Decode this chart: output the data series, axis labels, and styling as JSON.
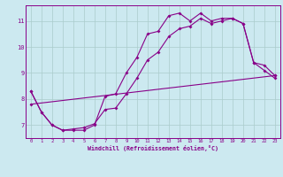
{
  "xlabel": "Windchill (Refroidissement éolien,°C)",
  "bg_color": "#cce9f0",
  "line_color": "#880088",
  "grid_color": "#aacccc",
  "xlim": [
    -0.5,
    23.5
  ],
  "ylim": [
    6.5,
    11.6
  ],
  "xticks": [
    0,
    1,
    2,
    3,
    4,
    5,
    6,
    7,
    8,
    9,
    10,
    11,
    12,
    13,
    14,
    15,
    16,
    17,
    18,
    19,
    20,
    21,
    22,
    23
  ],
  "yticks": [
    7,
    8,
    9,
    10,
    11
  ],
  "line1_x": [
    0,
    1,
    2,
    3,
    4,
    5,
    6,
    7,
    8,
    9,
    10,
    11,
    12,
    13,
    14,
    15,
    16,
    17,
    18,
    19,
    20,
    21,
    22,
    23
  ],
  "line1_y": [
    8.3,
    7.5,
    7.0,
    6.8,
    6.8,
    6.8,
    7.0,
    8.1,
    8.2,
    9.0,
    9.6,
    10.5,
    10.6,
    11.2,
    11.3,
    11.0,
    11.3,
    11.0,
    11.1,
    11.1,
    10.9,
    9.4,
    9.3,
    8.9
  ],
  "line2_x": [
    0,
    1,
    2,
    3,
    4,
    5,
    6,
    7,
    8,
    9,
    10,
    11,
    12,
    13,
    14,
    15,
    16,
    17,
    18,
    19,
    20,
    21,
    22,
    23
  ],
  "line2_y": [
    8.3,
    7.5,
    7.0,
    6.8,
    6.85,
    6.9,
    7.05,
    7.6,
    7.65,
    8.2,
    8.8,
    9.5,
    9.8,
    10.4,
    10.7,
    10.8,
    11.1,
    10.9,
    11.0,
    11.1,
    10.9,
    9.4,
    9.1,
    8.8
  ],
  "line3_x": [
    0,
    23
  ],
  "line3_y": [
    7.8,
    8.9
  ]
}
